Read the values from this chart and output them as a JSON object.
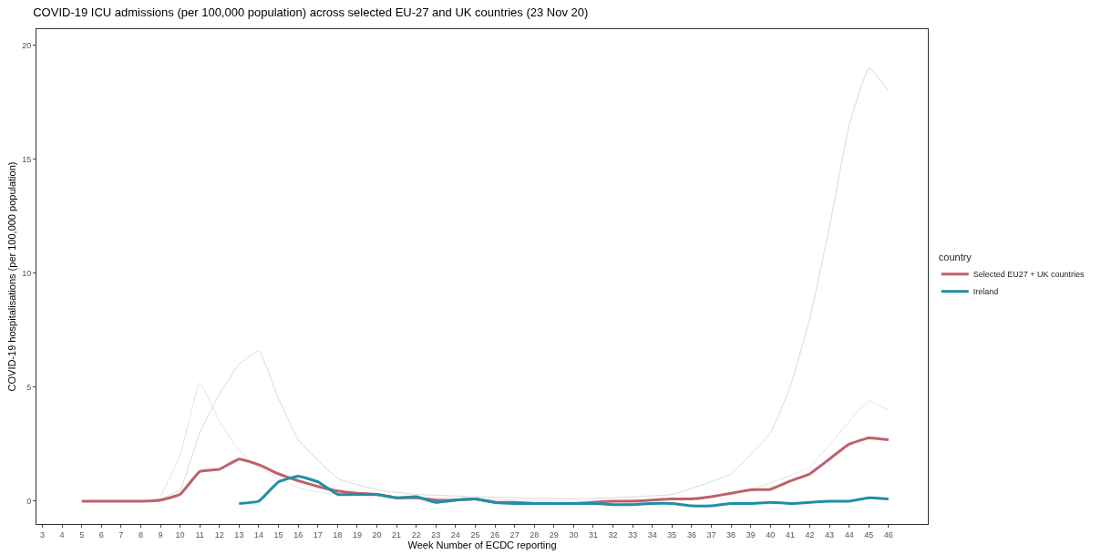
{
  "chart_data": {
    "type": "line",
    "title": "COVID-19 ICU admissions (per 100,000 population) across selected EU-27 and UK countries (23 Nov 20)",
    "xlabel": "Week Number of ECDC reporting",
    "ylabel": "COVID-19 hospitalisations (per 100,000 population)",
    "legend_title": "country",
    "legend": "right",
    "grid": false,
    "marker": "none",
    "line_style": "solid",
    "xlim": [
      2.7,
      48
    ],
    "xticks": [
      3,
      4,
      5,
      6,
      7,
      8,
      9,
      10,
      11,
      12,
      13,
      14,
      15,
      16,
      17,
      18,
      19,
      20,
      21,
      22,
      23,
      24,
      25,
      26,
      27,
      28,
      29,
      30,
      31,
      32,
      33,
      34,
      35,
      36,
      37,
      38,
      39,
      40,
      41,
      42,
      43,
      44,
      45,
      46
    ],
    "ylim": [
      -1,
      20.7
    ],
    "yticks": [
      0,
      5,
      10,
      15,
      20
    ],
    "series": [
      {
        "color": "#d9d9d9",
        "x": [
          9,
          10,
          11,
          12,
          13,
          14,
          15,
          16,
          17,
          18,
          20,
          22,
          25,
          30,
          35,
          38,
          40,
          41,
          42,
          43,
          44,
          45,
          46
        ],
        "values": [
          0.1,
          0.5,
          3,
          4.7,
          6,
          6.6,
          4.5,
          2.7,
          1.8,
          1,
          0.5,
          0.3,
          0.2,
          0.1,
          0.3,
          1.2,
          3,
          5,
          8,
          12,
          16.5,
          19,
          18
        ]
      },
      {
        "color": "#e3e3e3",
        "x": [
          9,
          10,
          11,
          12,
          13,
          14,
          15,
          16,
          17,
          18,
          20,
          25,
          30,
          35,
          38,
          40,
          42,
          44,
          45,
          46
        ],
        "values": [
          0.2,
          2,
          5.2,
          3.5,
          2.2,
          1.5,
          1,
          0.6,
          0.4,
          0.3,
          0.2,
          0.1,
          0,
          0.1,
          0.3,
          0.8,
          1.5,
          3.5,
          4.4,
          4
        ]
      },
      {
        "name": "Selected EU27 + UK countries",
        "color": "#c0606a",
        "x": [
          5,
          6,
          7,
          8,
          9,
          10,
          11,
          12,
          13,
          14,
          15,
          16,
          17,
          18,
          19,
          20,
          21,
          22,
          23,
          24,
          25,
          26,
          27,
          28,
          29,
          30,
          31,
          32,
          33,
          34,
          35,
          36,
          37,
          38,
          39,
          40,
          41,
          42,
          43,
          44,
          45,
          46
        ],
        "values": [
          0,
          0,
          0,
          0,
          0.05,
          0.3,
          1.3,
          1.4,
          1.85,
          1.6,
          1.2,
          0.9,
          0.65,
          0.45,
          0.35,
          0.3,
          0.15,
          0.15,
          0.05,
          0.05,
          0.1,
          -0.05,
          -0.05,
          -0.1,
          -0.1,
          -0.1,
          -0.05,
          0,
          0,
          0.05,
          0.1,
          0.1,
          0.2,
          0.35,
          0.5,
          0.52,
          0.88,
          1.2,
          1.85,
          2.5,
          2.78,
          2.7
        ]
      },
      {
        "name": "Ireland",
        "color": "#1f8fa8",
        "x": [
          13,
          14,
          15,
          16,
          17,
          18,
          19,
          20,
          21,
          22,
          23,
          24,
          25,
          26,
          27,
          28,
          29,
          30,
          31,
          32,
          33,
          34,
          35,
          36,
          37,
          38,
          39,
          40,
          41,
          42,
          43,
          44,
          45,
          46
        ],
        "values": [
          -0.1,
          0,
          0.85,
          1.1,
          0.85,
          0.3,
          0.3,
          0.3,
          0.15,
          0.2,
          -0.05,
          0.05,
          0.1,
          -0.05,
          -0.1,
          -0.1,
          -0.1,
          -0.1,
          -0.1,
          -0.15,
          -0.15,
          -0.1,
          -0.1,
          -0.2,
          -0.2,
          -0.1,
          -0.1,
          -0.05,
          -0.1,
          -0.05,
          0,
          0,
          0.15,
          0.1
        ]
      }
    ]
  }
}
